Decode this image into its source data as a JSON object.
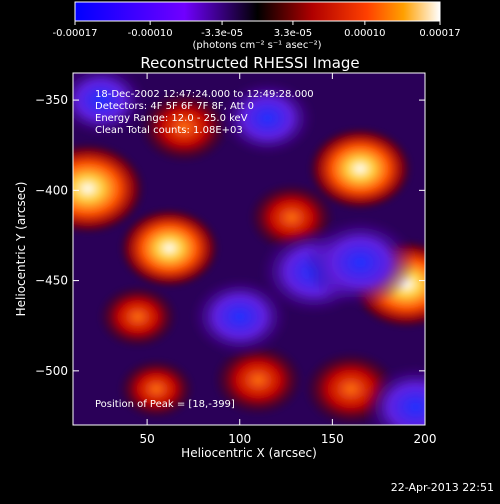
{
  "chart_data": {
    "type": "heatmap",
    "title": "Reconstructed RHESSI Image",
    "xlabel": "Heliocentric X (arcsec)",
    "ylabel": "Heliocentric Y (arcsec)",
    "xlim": [
      10,
      200
    ],
    "ylim": [
      -530,
      -335
    ],
    "xticks": [
      50,
      100,
      150,
      200
    ],
    "yticks": [
      -350,
      -400,
      -450,
      -500
    ],
    "annotations": [
      "18-Dec-2002 12:47:24.000 to 12:49:28.000",
      "Detectors: 4F 5F 6F 7F 8F, Att 0",
      "Energy Range: 12.0 - 25.0 keV",
      "Clean     Total counts: 1.08E+03"
    ],
    "peak_label": "Position of Peak = [18,-399]",
    "peak_position": [
      18,
      -399
    ],
    "colorbar": {
      "range": [
        -0.00017,
        0.00017
      ],
      "tick_labels": [
        "-0.00017",
        "-0.00010",
        "-3.3e-05",
        "3.3e-05",
        "0.00010",
        "0.00017"
      ],
      "unit_label": "(photons cm⁻² s⁻¹ asec⁻²)",
      "colors": [
        "#0000ff",
        "#7000ff",
        "#000000",
        "#b00000",
        "#ff4000",
        "#ffa000",
        "#ffffff"
      ]
    },
    "sources": [
      {
        "x": 18,
        "y": -399,
        "intensity": 0.00017
      },
      {
        "x": 70,
        "y": -365,
        "intensity": 0.0001
      },
      {
        "x": 62,
        "y": -432,
        "intensity": 0.00013
      },
      {
        "x": 128,
        "y": -415,
        "intensity": 9e-05
      },
      {
        "x": 165,
        "y": -388,
        "intensity": 0.00014
      },
      {
        "x": 190,
        "y": -452,
        "intensity": 0.00016
      },
      {
        "x": 160,
        "y": -510,
        "intensity": 0.00011
      },
      {
        "x": 110,
        "y": -505,
        "intensity": 0.0001
      },
      {
        "x": 45,
        "y": -470,
        "intensity": 7e-05
      },
      {
        "x": 55,
        "y": -510,
        "intensity": 6e-05
      },
      {
        "x": 140,
        "y": -445,
        "intensity": -0.00015
      },
      {
        "x": 165,
        "y": -440,
        "intensity": -0.00016
      },
      {
        "x": 100,
        "y": -470,
        "intensity": -0.00012
      },
      {
        "x": 195,
        "y": -520,
        "intensity": -0.00014
      },
      {
        "x": 25,
        "y": -350,
        "intensity": -0.0001
      },
      {
        "x": 115,
        "y": -360,
        "intensity": -0.00011
      }
    ]
  },
  "timestamp": "22-Apr-2013 22:51"
}
